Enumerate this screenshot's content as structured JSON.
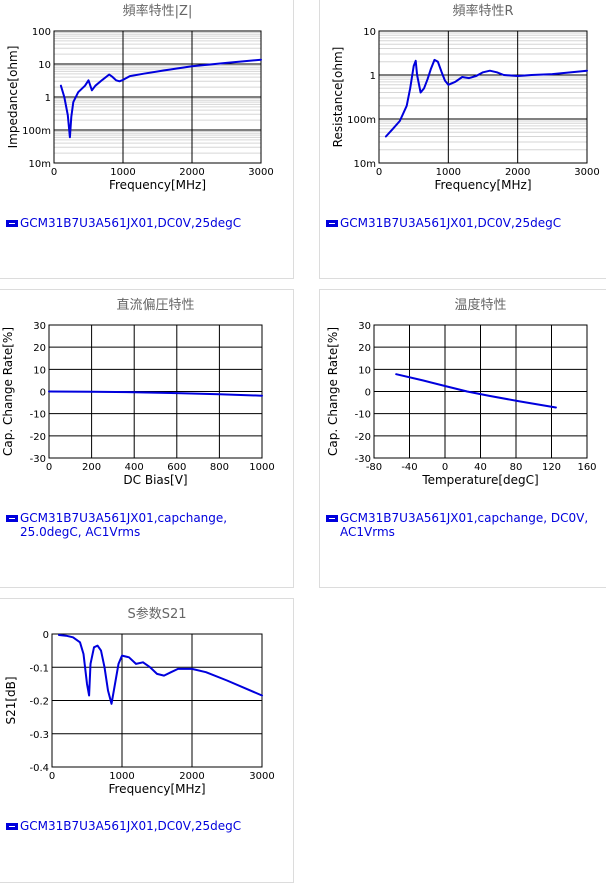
{
  "series_color": "#0000dd",
  "chart_data": [
    {
      "type": "line",
      "title": "頻率特性|Z|",
      "xlabel": "Frequency[MHz]",
      "ylabel": "Impedance[ohm]",
      "xlim": [
        0,
        3000
      ],
      "ylim": [
        0.01,
        100
      ],
      "yscale": "log",
      "x_ticks": [
        0,
        1000,
        2000,
        3000
      ],
      "y_tick_values": [
        0.01,
        0.1,
        1,
        10,
        100
      ],
      "y_tick_labels": [
        "10m",
        "100m",
        "1",
        "10",
        "100"
      ],
      "legend": "GCM31B7U3A561JX01,DC0V,25degC",
      "series": [
        {
          "x": [
            100,
            150,
            200,
            230,
            250,
            280,
            350,
            450,
            500,
            550,
            600,
            700,
            800,
            850,
            900,
            950,
            1000,
            1100,
            1300,
            1600,
            2000,
            2500,
            3000
          ],
          "y": [
            2.2,
            1.0,
            0.28,
            0.06,
            0.25,
            0.7,
            1.4,
            2.2,
            3.2,
            1.6,
            2.2,
            3.3,
            4.8,
            4.0,
            3.2,
            3.0,
            3.3,
            4.3,
            5.1,
            6.4,
            8.5,
            10.8,
            13.5
          ]
        }
      ]
    },
    {
      "type": "line",
      "title": "頻率特性R",
      "xlabel": "Frequency[MHz]",
      "ylabel": "Resistance[ohm]",
      "xlim": [
        0,
        3000
      ],
      "ylim": [
        0.01,
        10
      ],
      "yscale": "log",
      "x_ticks": [
        0,
        1000,
        2000,
        3000
      ],
      "y_tick_values": [
        0.01,
        0.1,
        1,
        10
      ],
      "y_tick_labels": [
        "10m",
        "100m",
        "1",
        "10"
      ],
      "legend": "GCM31B7U3A561JX01,DC0V,25degC",
      "series": [
        {
          "x": [
            100,
            200,
            300,
            400,
            450,
            500,
            530,
            550,
            600,
            650,
            700,
            750,
            800,
            850,
            900,
            950,
            1000,
            1100,
            1200,
            1300,
            1400,
            1500,
            1600,
            1700,
            1800,
            2000,
            2200,
            2500,
            3000
          ],
          "y": [
            0.04,
            0.06,
            0.09,
            0.2,
            0.5,
            1.6,
            2.1,
            1.0,
            0.4,
            0.5,
            0.8,
            1.4,
            2.2,
            2.0,
            1.2,
            0.75,
            0.6,
            0.7,
            0.9,
            0.85,
            0.95,
            1.15,
            1.25,
            1.15,
            1.0,
            0.95,
            1.0,
            1.05,
            1.25
          ]
        }
      ]
    },
    {
      "type": "line",
      "title": "直流偏圧特性",
      "xlabel": "DC Bias[V]",
      "ylabel": "Cap. Change Rate[%]",
      "xlim": [
        0,
        1000
      ],
      "ylim": [
        -30,
        30
      ],
      "x_ticks": [
        0,
        200,
        400,
        600,
        800,
        1000
      ],
      "y_ticks": [
        -30,
        -20,
        -10,
        0,
        10,
        20,
        30
      ],
      "legend": "GCM31B7U3A561JX01,capchange, 25.0degC, AC1Vrms",
      "series": [
        {
          "x": [
            0,
            200,
            400,
            600,
            800,
            1000
          ],
          "y": [
            0,
            -0.1,
            -0.3,
            -0.7,
            -1.2,
            -1.9
          ]
        }
      ]
    },
    {
      "type": "line",
      "title": "温度特性",
      "xlabel": "Temperature[degC]",
      "ylabel": "Cap. Change Rate[%]",
      "xlim": [
        -80,
        160
      ],
      "ylim": [
        -30,
        30
      ],
      "x_ticks": [
        -80,
        -40,
        0,
        40,
        80,
        120,
        160
      ],
      "y_ticks": [
        -30,
        -20,
        -10,
        0,
        10,
        20,
        30
      ],
      "legend": "GCM31B7U3A561JX01,capchange, DC0V, AC1Vrms",
      "series": [
        {
          "x": [
            -55,
            -25,
            0,
            25,
            50,
            85,
            125
          ],
          "y": [
            7.8,
            5.0,
            2.5,
            0,
            -2.0,
            -4.5,
            -7.2
          ]
        }
      ]
    },
    {
      "type": "line",
      "title": "S参数S21",
      "xlabel": "Frequency[MHz]",
      "ylabel": "S21[dB]",
      "xlim": [
        0,
        3000
      ],
      "ylim": [
        -0.4,
        0
      ],
      "x_ticks": [
        0,
        1000,
        2000,
        3000
      ],
      "y_ticks": [
        -0.4,
        -0.3,
        -0.2,
        -0.1,
        0
      ],
      "y_tick_labels": [
        "-0.4",
        "-0.3",
        "-0.2",
        "-0.1",
        "0"
      ],
      "legend": "GCM31B7U3A561JX01,DC0V,25degC",
      "series": [
        {
          "x": [
            100,
            200,
            300,
            400,
            450,
            500,
            530,
            550,
            600,
            650,
            700,
            750,
            800,
            850,
            900,
            950,
            1000,
            1100,
            1200,
            1300,
            1400,
            1500,
            1600,
            1700,
            1800,
            2000,
            2200,
            2500,
            3000
          ],
          "y": [
            -0.003,
            -0.005,
            -0.01,
            -0.025,
            -0.06,
            -0.15,
            -0.185,
            -0.09,
            -0.04,
            -0.035,
            -0.05,
            -0.1,
            -0.17,
            -0.21,
            -0.15,
            -0.09,
            -0.065,
            -0.07,
            -0.09,
            -0.085,
            -0.1,
            -0.12,
            -0.125,
            -0.115,
            -0.105,
            -0.105,
            -0.115,
            -0.14,
            -0.185
          ]
        }
      ]
    }
  ]
}
